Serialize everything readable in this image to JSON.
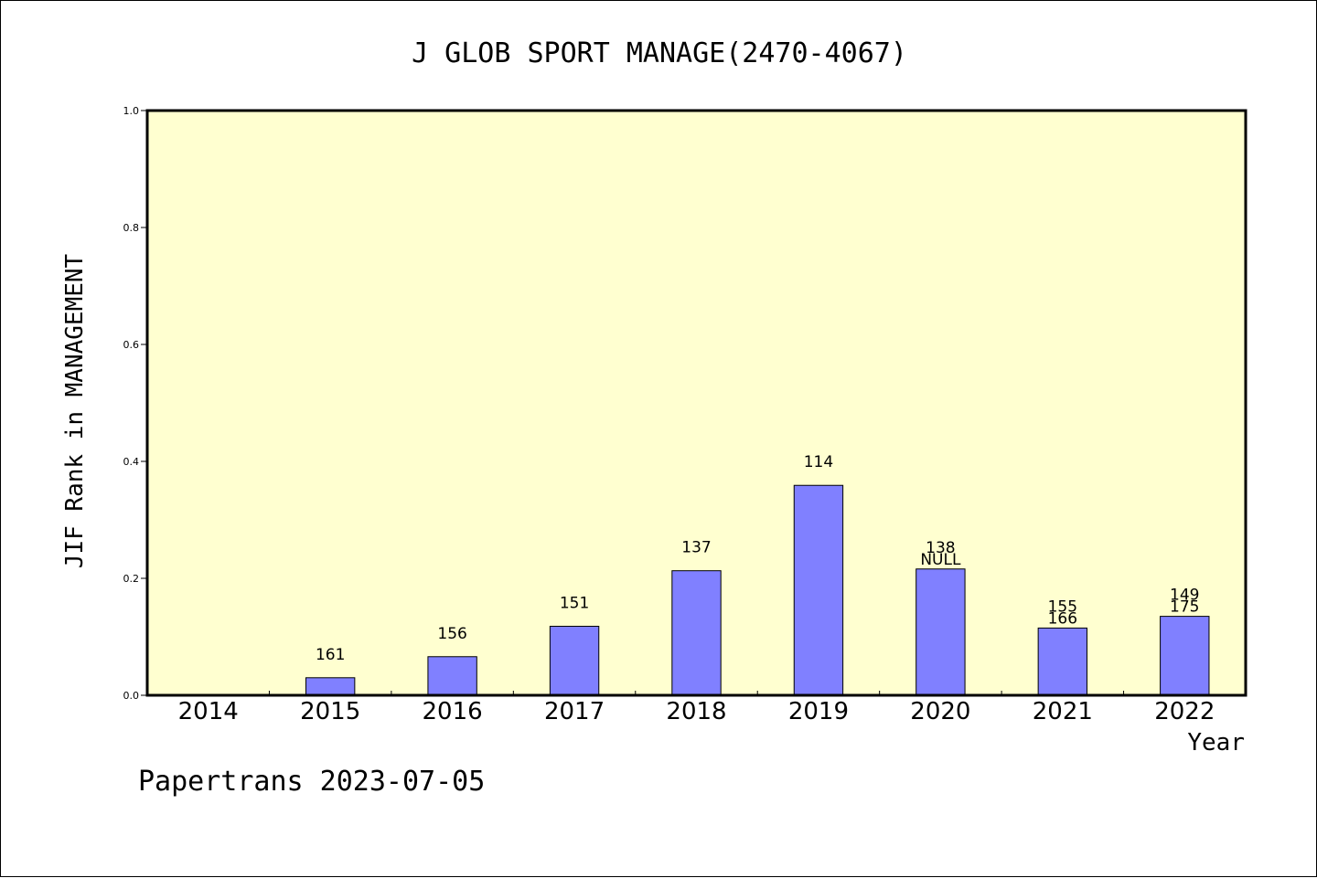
{
  "chart_data": {
    "type": "bar",
    "title": "J GLOB SPORT MANAGE(2470-4067)",
    "xlabel": "Year",
    "ylabel": "JIF Rank in MANAGEMENT",
    "ylim": [
      0,
      1.0
    ],
    "yticks": [
      "0.0",
      "0.2",
      "0.4",
      "0.6",
      "0.8",
      "1.0"
    ],
    "categories": [
      "2014",
      "2015",
      "2016",
      "2017",
      "2018",
      "2019",
      "2020",
      "2021",
      "2022"
    ],
    "values": [
      null,
      0.03,
      0.066,
      0.118,
      0.213,
      0.359,
      0.216,
      0.115,
      0.135
    ],
    "labels": [
      [],
      [
        "161"
      ],
      [
        "156"
      ],
      [
        "151"
      ],
      [
        "137"
      ],
      [
        "114"
      ],
      [
        "138",
        "NULL"
      ],
      [
        "155",
        "166"
      ],
      [
        "149",
        "175"
      ]
    ],
    "grid": false,
    "colors": {
      "bar": "#8080ff",
      "plot_background": "#ffffd0",
      "axis": "#000000"
    }
  },
  "footer": {
    "text": "Papertrans 2023-07-05"
  }
}
